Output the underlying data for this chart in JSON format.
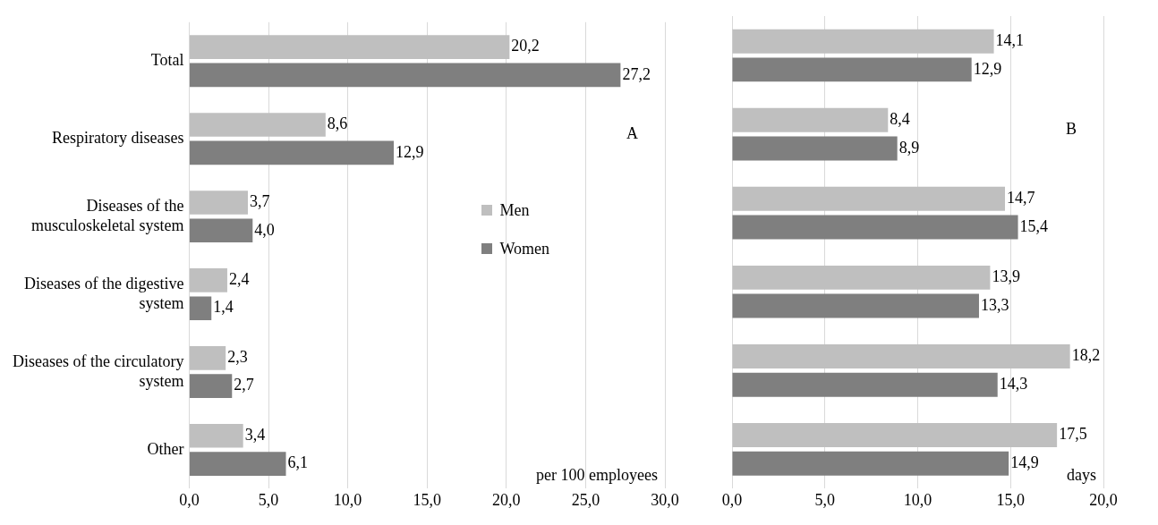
{
  "chart_data": [
    {
      "type": "bar",
      "orientation": "horizontal",
      "categories": [
        "Total",
        "Respiratory diseases",
        "Diseases of the musculoskeletal system",
        "Diseases of the digestive system",
        "Diseases of the circulatory system",
        "Other"
      ],
      "series": [
        {
          "name": "Men",
          "color": "#bfbfbf",
          "values": [
            20.2,
            8.6,
            3.7,
            2.4,
            2.3,
            3.4
          ],
          "value_labels": [
            "20,2",
            "8,6",
            "3,7",
            "2,4",
            "2,3",
            "3,4"
          ]
        },
        {
          "name": "Women",
          "color": "#7f7f7f",
          "values": [
            27.2,
            12.9,
            4.0,
            1.4,
            2.7,
            6.1
          ],
          "value_labels": [
            "27,2",
            "12,9",
            "4,0",
            "1,4",
            "2,7",
            "6,1"
          ]
        }
      ],
      "xlim": [
        0,
        30
      ],
      "xticks": [
        {
          "value": 0,
          "label": "0,0"
        },
        {
          "value": 5,
          "label": "5,0"
        },
        {
          "value": 10,
          "label": "10,0"
        },
        {
          "value": 15,
          "label": "15,0"
        },
        {
          "value": 20,
          "label": "20,0"
        },
        {
          "value": 25,
          "label": "25,0"
        },
        {
          "value": 30,
          "label": "30,0"
        }
      ],
      "grid": "x",
      "legend": "right",
      "annotations": [
        "A",
        "per 100 employees"
      ]
    },
    {
      "type": "bar",
      "orientation": "horizontal",
      "categories": [
        null,
        null,
        null,
        null,
        null,
        null
      ],
      "series": [
        {
          "color": "#bfbfbf",
          "values": [
            14.1,
            8.4,
            14.7,
            13.9,
            18.2,
            17.5
          ],
          "value_labels": [
            "14,1",
            "8,4",
            "14,7",
            "13,9",
            "18,2",
            "17,5"
          ]
        },
        {
          "color": "#7f7f7f",
          "values": [
            12.9,
            8.9,
            15.4,
            13.3,
            14.3,
            14.9
          ],
          "value_labels": [
            "12,9",
            "8,9",
            "15,4",
            "13,3",
            "14,3",
            "14,9"
          ]
        }
      ],
      "xlim": [
        0,
        20
      ],
      "xticks": [
        {
          "value": 0,
          "label": "0,0"
        },
        {
          "value": 5,
          "label": "5,0"
        },
        {
          "value": 10,
          "label": "10,0"
        },
        {
          "value": 15,
          "label": "15,0"
        },
        {
          "value": 20,
          "label": "20,0"
        }
      ],
      "grid": "x",
      "tick_labels": "x",
      "annotations": [
        "B",
        "days"
      ]
    }
  ]
}
